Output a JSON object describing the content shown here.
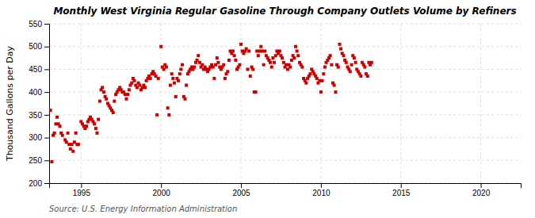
{
  "chart_data": {
    "type": "scatter",
    "title": "Monthly West Virginia Regular Gasoline Through Company Outlets Volume by Refiners",
    "ylabel": "Thousand Gallons per Day",
    "source": "Source: U.S. Energy Information Administration",
    "xlim": [
      1993.0,
      2022.5
    ],
    "ylim": [
      200,
      550
    ],
    "xticks": [
      1995,
      2000,
      2005,
      2010,
      2015,
      2020
    ],
    "yticks": [
      200,
      250,
      300,
      350,
      400,
      450,
      500,
      550
    ],
    "grid": true,
    "color": "#cc0000",
    "marker": "square",
    "x": [
      1993.08,
      1993.17,
      1993.25,
      1993.33,
      1993.42,
      1993.5,
      1993.58,
      1993.67,
      1993.75,
      1993.83,
      1994.0,
      1994.08,
      1994.17,
      1994.25,
      1994.33,
      1994.42,
      1994.5,
      1994.58,
      1994.67,
      1994.75,
      1994.83,
      1995.0,
      1995.08,
      1995.17,
      1995.25,
      1995.33,
      1995.42,
      1995.5,
      1995.58,
      1995.67,
      1995.75,
      1995.83,
      1995.92,
      1996.0,
      1996.08,
      1996.17,
      1996.25,
      1996.33,
      1996.42,
      1996.5,
      1996.58,
      1996.67,
      1996.75,
      1996.83,
      1996.92,
      1997.0,
      1997.08,
      1997.17,
      1997.25,
      1997.33,
      1997.42,
      1997.5,
      1997.58,
      1997.67,
      1997.75,
      1997.83,
      1997.92,
      1998.0,
      1998.08,
      1998.17,
      1998.25,
      1998.33,
      1998.42,
      1998.5,
      1998.58,
      1998.67,
      1998.75,
      1998.83,
      1998.92,
      1999.0,
      1999.08,
      1999.17,
      1999.25,
      1999.33,
      1999.42,
      1999.5,
      1999.58,
      1999.67,
      1999.75,
      1999.83,
      2000.0,
      2000.08,
      2000.17,
      2000.25,
      2000.33,
      2000.42,
      2000.5,
      2000.58,
      2000.67,
      2000.75,
      2000.83,
      2000.92,
      2001.0,
      2001.08,
      2001.17,
      2001.25,
      2001.33,
      2001.42,
      2001.5,
      2001.58,
      2001.67,
      2001.75,
      2001.83,
      2001.92,
      2002.0,
      2002.08,
      2002.17,
      2002.25,
      2002.33,
      2002.42,
      2002.5,
      2002.58,
      2002.67,
      2002.75,
      2002.83,
      2002.92,
      2003.0,
      2003.08,
      2003.17,
      2003.25,
      2003.33,
      2003.42,
      2003.5,
      2003.58,
      2003.67,
      2003.75,
      2003.83,
      2003.92,
      2004.0,
      2004.08,
      2004.17,
      2004.25,
      2004.33,
      2004.42,
      2004.5,
      2004.58,
      2004.67,
      2004.75,
      2004.83,
      2004.92,
      2005.0,
      2005.08,
      2005.17,
      2005.25,
      2005.33,
      2005.42,
      2005.5,
      2005.58,
      2005.67,
      2005.75,
      2005.83,
      2005.92,
      2006.0,
      2006.08,
      2006.17,
      2006.25,
      2006.33,
      2006.42,
      2006.5,
      2006.58,
      2006.67,
      2006.75,
      2006.83,
      2006.92,
      2007.0,
      2007.08,
      2007.17,
      2007.25,
      2007.33,
      2007.42,
      2007.5,
      2007.58,
      2007.67,
      2007.75,
      2007.83,
      2007.92,
      2008.0,
      2008.08,
      2008.17,
      2008.25,
      2008.33,
      2008.42,
      2008.5,
      2008.58,
      2008.67,
      2008.75,
      2008.83,
      2008.92,
      2009.0,
      2009.08,
      2009.17,
      2009.25,
      2009.33,
      2009.42,
      2009.5,
      2009.58,
      2009.67,
      2009.75,
      2009.83,
      2009.92,
      2010.0,
      2010.08,
      2010.17,
      2010.25,
      2010.33,
      2010.42,
      2010.5,
      2010.58,
      2010.67,
      2010.75,
      2010.83,
      2010.92,
      2011.0,
      2011.08,
      2011.17,
      2011.25,
      2011.33,
      2011.42,
      2011.5,
      2011.58,
      2011.67,
      2011.75,
      2011.83,
      2011.92,
      2012.0,
      2012.08,
      2012.17,
      2012.25,
      2012.33,
      2012.42,
      2012.5,
      2012.58,
      2012.67,
      2012.75,
      2012.83,
      2012.92,
      2013.0,
      2013.08,
      2013.17
    ],
    "values": [
      360,
      247,
      305,
      310,
      330,
      345,
      330,
      325,
      310,
      305,
      295,
      290,
      310,
      285,
      275,
      285,
      270,
      290,
      310,
      285,
      285,
      335,
      330,
      325,
      320,
      325,
      335,
      340,
      345,
      340,
      335,
      330,
      320,
      310,
      340,
      380,
      405,
      410,
      400,
      390,
      385,
      375,
      370,
      365,
      360,
      355,
      380,
      395,
      400,
      405,
      410,
      405,
      400,
      400,
      395,
      385,
      395,
      405,
      415,
      420,
      430,
      425,
      415,
      410,
      420,
      415,
      405,
      410,
      415,
      410,
      425,
      430,
      435,
      430,
      440,
      445,
      440,
      435,
      350,
      430,
      500,
      455,
      450,
      460,
      455,
      365,
      350,
      415,
      440,
      430,
      420,
      390,
      430,
      425,
      440,
      450,
      460,
      390,
      385,
      415,
      440,
      445,
      450,
      455,
      450,
      455,
      465,
      470,
      480,
      465,
      455,
      460,
      450,
      455,
      450,
      445,
      450,
      455,
      460,
      455,
      430,
      460,
      475,
      465,
      455,
      450,
      455,
      460,
      430,
      440,
      445,
      470,
      490,
      485,
      490,
      480,
      470,
      450,
      455,
      460,
      505,
      490,
      485,
      490,
      495,
      450,
      490,
      435,
      455,
      450,
      400,
      400,
      490,
      480,
      490,
      500,
      490,
      460,
      490,
      480,
      475,
      470,
      465,
      455,
      475,
      465,
      480,
      490,
      485,
      490,
      480,
      475,
      465,
      455,
      460,
      450,
      460,
      455,
      470,
      480,
      475,
      500,
      490,
      480,
      465,
      460,
      455,
      430,
      425,
      420,
      430,
      435,
      440,
      450,
      445,
      440,
      435,
      430,
      420,
      425,
      400,
      425,
      440,
      455,
      465,
      470,
      475,
      480,
      460,
      420,
      415,
      400,
      460,
      455,
      505,
      495,
      485,
      480,
      470,
      465,
      455,
      450,
      445,
      460,
      480,
      475,
      465,
      450,
      445,
      440,
      435,
      465,
      460,
      455,
      440,
      435,
      465,
      460,
      465
    ]
  }
}
